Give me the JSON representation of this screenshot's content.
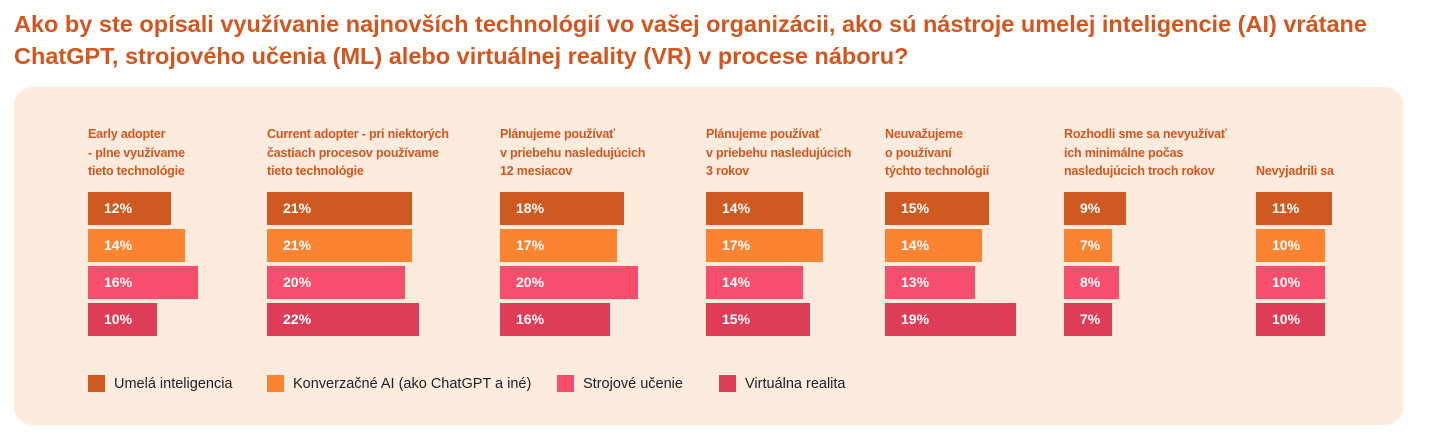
{
  "title": "Ako by ste opísali využívanie najnovších technológií vo vašej organizácii, ako sú nástroje umelej inteligencie (AI) vrátane ChatGPT, strojového učenia (ML) alebo virtuálnej reality (VR) v procese náboru?",
  "colors": {
    "umela_inteligencia": "#cf5a21",
    "konverzacne_ai": "#fb8331",
    "strojove_ucenie": "#f74e6d",
    "virtualna_realita": "#dd3d57",
    "title": "#d2561f",
    "panel": "#fdebde"
  },
  "chart_data": {
    "type": "bar",
    "orientation": "horizontal",
    "categories": [
      "Early adopter\n- plne využívame\n  tieto technológie",
      "Current adopter - pri niektorých\nčastiach procesov používame\ntieto technológie",
      "Plánujeme používať\nv priebehu nasledujúcich\n12 mesiacov",
      "Plánujeme používať\nv priebehu nasledujúcich\n3 rokov",
      "Neuvažujeme\no používaní\ntýchto technológií",
      "Rozhodli sme sa nevyužívať\nich minimálne počas\nnasledujúcich troch rokov",
      "Nevyjadrili sa"
    ],
    "series": [
      {
        "name": "Umelá inteligencia",
        "values": [
          12,
          21,
          18,
          14,
          15,
          9,
          11
        ]
      },
      {
        "name": "Konverzačné AI (ako ChatGPT a iné)",
        "values": [
          14,
          21,
          17,
          17,
          14,
          7,
          10
        ]
      },
      {
        "name": "Strojové učenie",
        "values": [
          16,
          20,
          20,
          14,
          13,
          8,
          10
        ]
      },
      {
        "name": "Virtuálna realita",
        "values": [
          10,
          22,
          16,
          15,
          19,
          7,
          10
        ]
      }
    ],
    "value_suffix": "%",
    "legend_position": "bottom",
    "grid": false
  }
}
